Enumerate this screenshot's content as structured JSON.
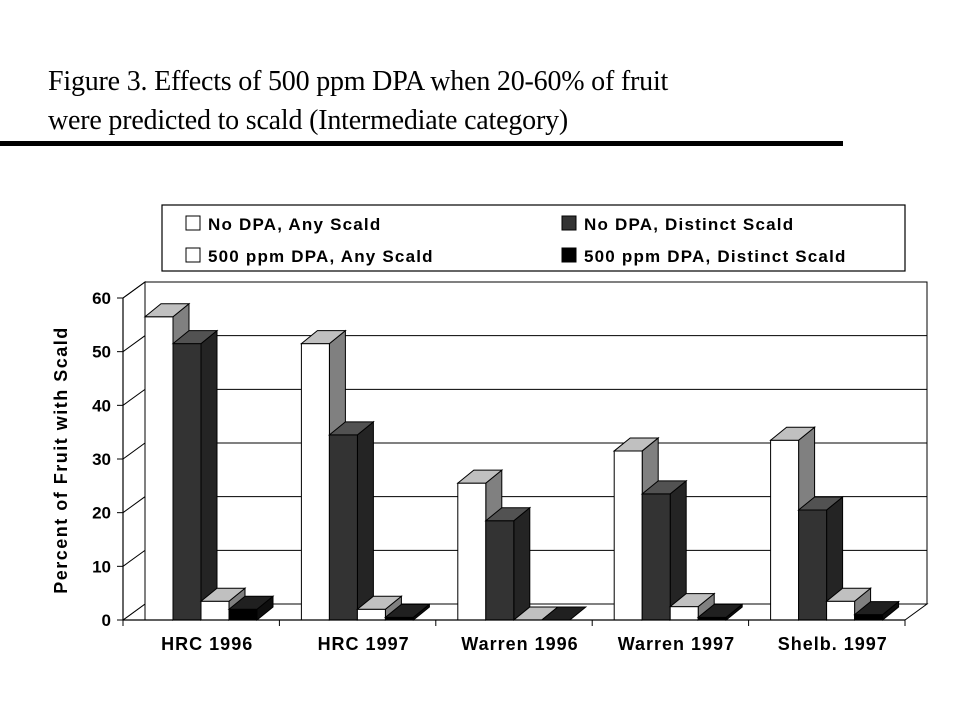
{
  "title": {
    "line1": "Figure 3.  Effects of 500 ppm DPA when 20-60% of fruit",
    "line2": "were predicted to scald (Intermediate category)"
  },
  "colors": {
    "no_dpa_any": "#ffffff",
    "no_dpa_distinct": "#333333",
    "dpa_any": "#ffffff",
    "dpa_distinct": "#000000"
  },
  "chart_data": {
    "type": "bar",
    "ylabel": "Percent of Fruit with Scald",
    "xlabel": "",
    "ylim": [
      0,
      60
    ],
    "yticks": [
      0,
      10,
      20,
      30,
      40,
      50,
      60
    ],
    "grid": true,
    "legend_position": "top",
    "categories": [
      "HRC  1996",
      "HRC  1997",
      "Warren 1996",
      "Warren 1997",
      "Shelb. 1997"
    ],
    "series": [
      {
        "name": "No DPA, Any Scald",
        "values": [
          56.5,
          51.5,
          25.5,
          31.5,
          33.5
        ]
      },
      {
        "name": "No DPA, Distinct Scald",
        "values": [
          51.5,
          34.5,
          18.5,
          23.5,
          20.5
        ]
      },
      {
        "name": "500 ppm DPA, Any Scald",
        "values": [
          3.5,
          2,
          0,
          2.5,
          3.5
        ]
      },
      {
        "name": "500 ppm DPA, Distinct Scald",
        "values": [
          2,
          0.5,
          0,
          0.5,
          1
        ]
      }
    ]
  }
}
